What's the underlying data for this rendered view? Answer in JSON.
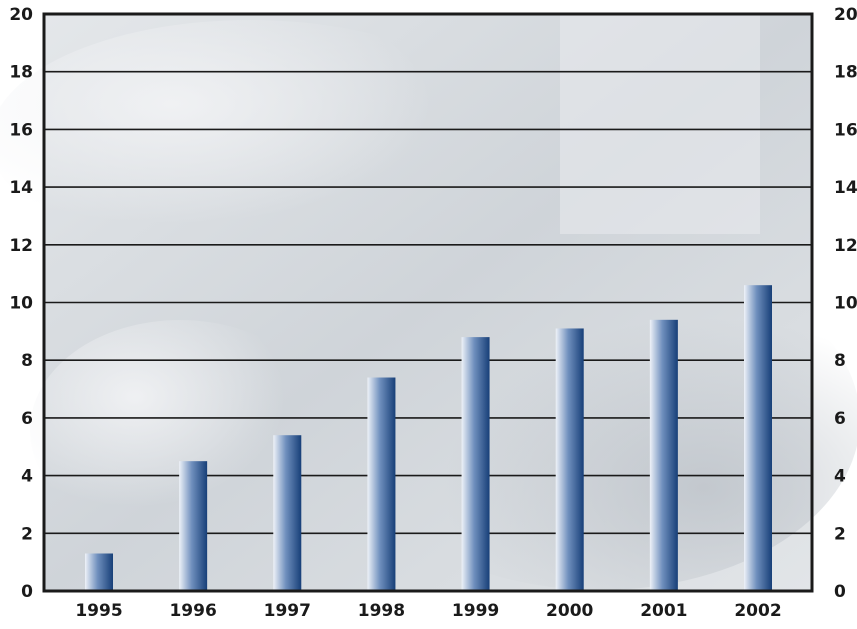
{
  "chart_data": {
    "type": "bar",
    "categories": [
      "1995",
      "1996",
      "1997",
      "1998",
      "1999",
      "2000",
      "2001",
      "2002"
    ],
    "values": [
      1.3,
      4.5,
      5.4,
      7.4,
      8.8,
      9.1,
      9.4,
      10.6
    ],
    "title": "",
    "xlabel": "",
    "ylabel": "",
    "ylim": [
      0,
      20
    ],
    "yticks": [
      "0",
      "2",
      "4",
      "6",
      "8",
      "10",
      "12",
      "14",
      "16",
      "18",
      "20"
    ],
    "grid": true,
    "legend": "none",
    "colors": {
      "bar_dark": "#1e4f8c",
      "bar_light": "#e8eef7",
      "grid": "#1a1a1a",
      "background": "#d9dde2"
    }
  }
}
